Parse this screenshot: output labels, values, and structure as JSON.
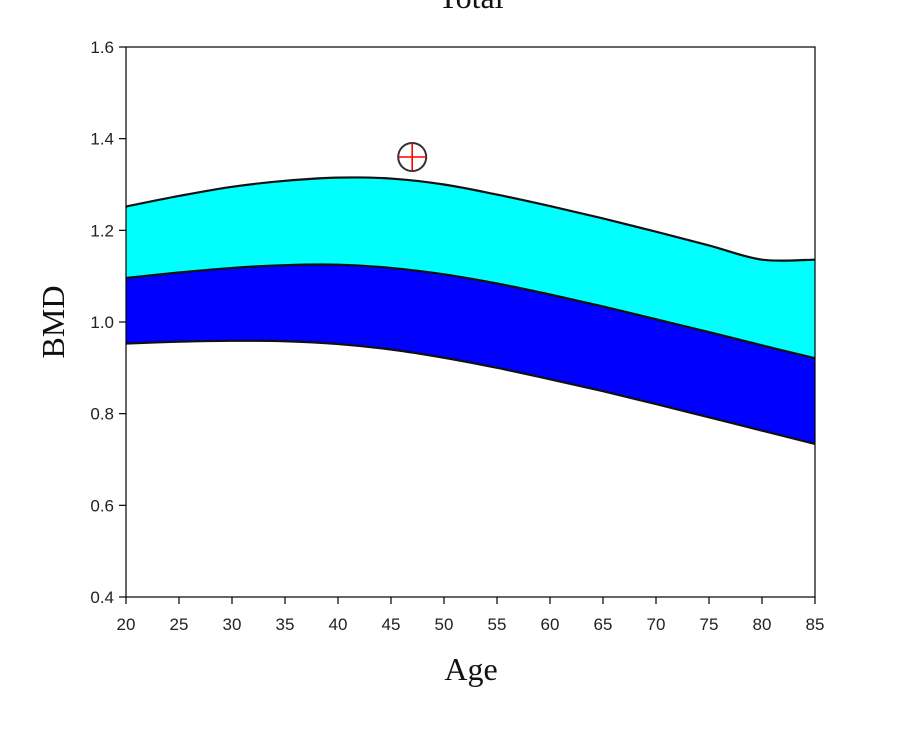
{
  "chart_data": {
    "type": "area",
    "title": "Total",
    "xlabel": "Age",
    "ylabel": "BMD",
    "xlim": [
      20,
      85
    ],
    "ylim": [
      0.4,
      1.6
    ],
    "x_ticks": [
      "20",
      "25",
      "30",
      "35",
      "40",
      "45",
      "50",
      "55",
      "60",
      "65",
      "70",
      "75",
      "80",
      "85"
    ],
    "y_ticks": [
      "0.4",
      "0.6",
      "0.8",
      "1.0",
      "1.2",
      "1.4",
      "1.6"
    ],
    "grid": false,
    "legend": "none",
    "x": [
      20,
      25,
      30,
      35,
      40,
      45,
      50,
      55,
      60,
      65,
      70,
      75,
      80,
      85
    ],
    "series": [
      {
        "color": "#0000ff",
        "lower": [
          0.953,
          0.957,
          0.959,
          0.958,
          0.952,
          0.94,
          0.922,
          0.9,
          0.875,
          0.849,
          0.821,
          0.792,
          0.763,
          0.734
        ],
        "upper": [
          1.096,
          1.108,
          1.118,
          1.124,
          1.125,
          1.118,
          1.104,
          1.084,
          1.06,
          1.034,
          1.006,
          0.978,
          0.949,
          0.921
        ]
      },
      {
        "color": "#00ffff",
        "lower": [
          1.096,
          1.108,
          1.118,
          1.124,
          1.125,
          1.118,
          1.104,
          1.084,
          1.06,
          1.034,
          1.006,
          0.978,
          0.949,
          0.921
        ],
        "upper": [
          1.252,
          1.275,
          1.295,
          1.308,
          1.315,
          1.313,
          1.3,
          1.278,
          1.253,
          1.226,
          1.197,
          1.167,
          1.136,
          1.136
        ]
      }
    ],
    "marker": {
      "x": 47,
      "y": 1.36,
      "symbol": "circle-crosshair",
      "ring_color": "#333333",
      "cross_color": "#ff0000"
    }
  }
}
